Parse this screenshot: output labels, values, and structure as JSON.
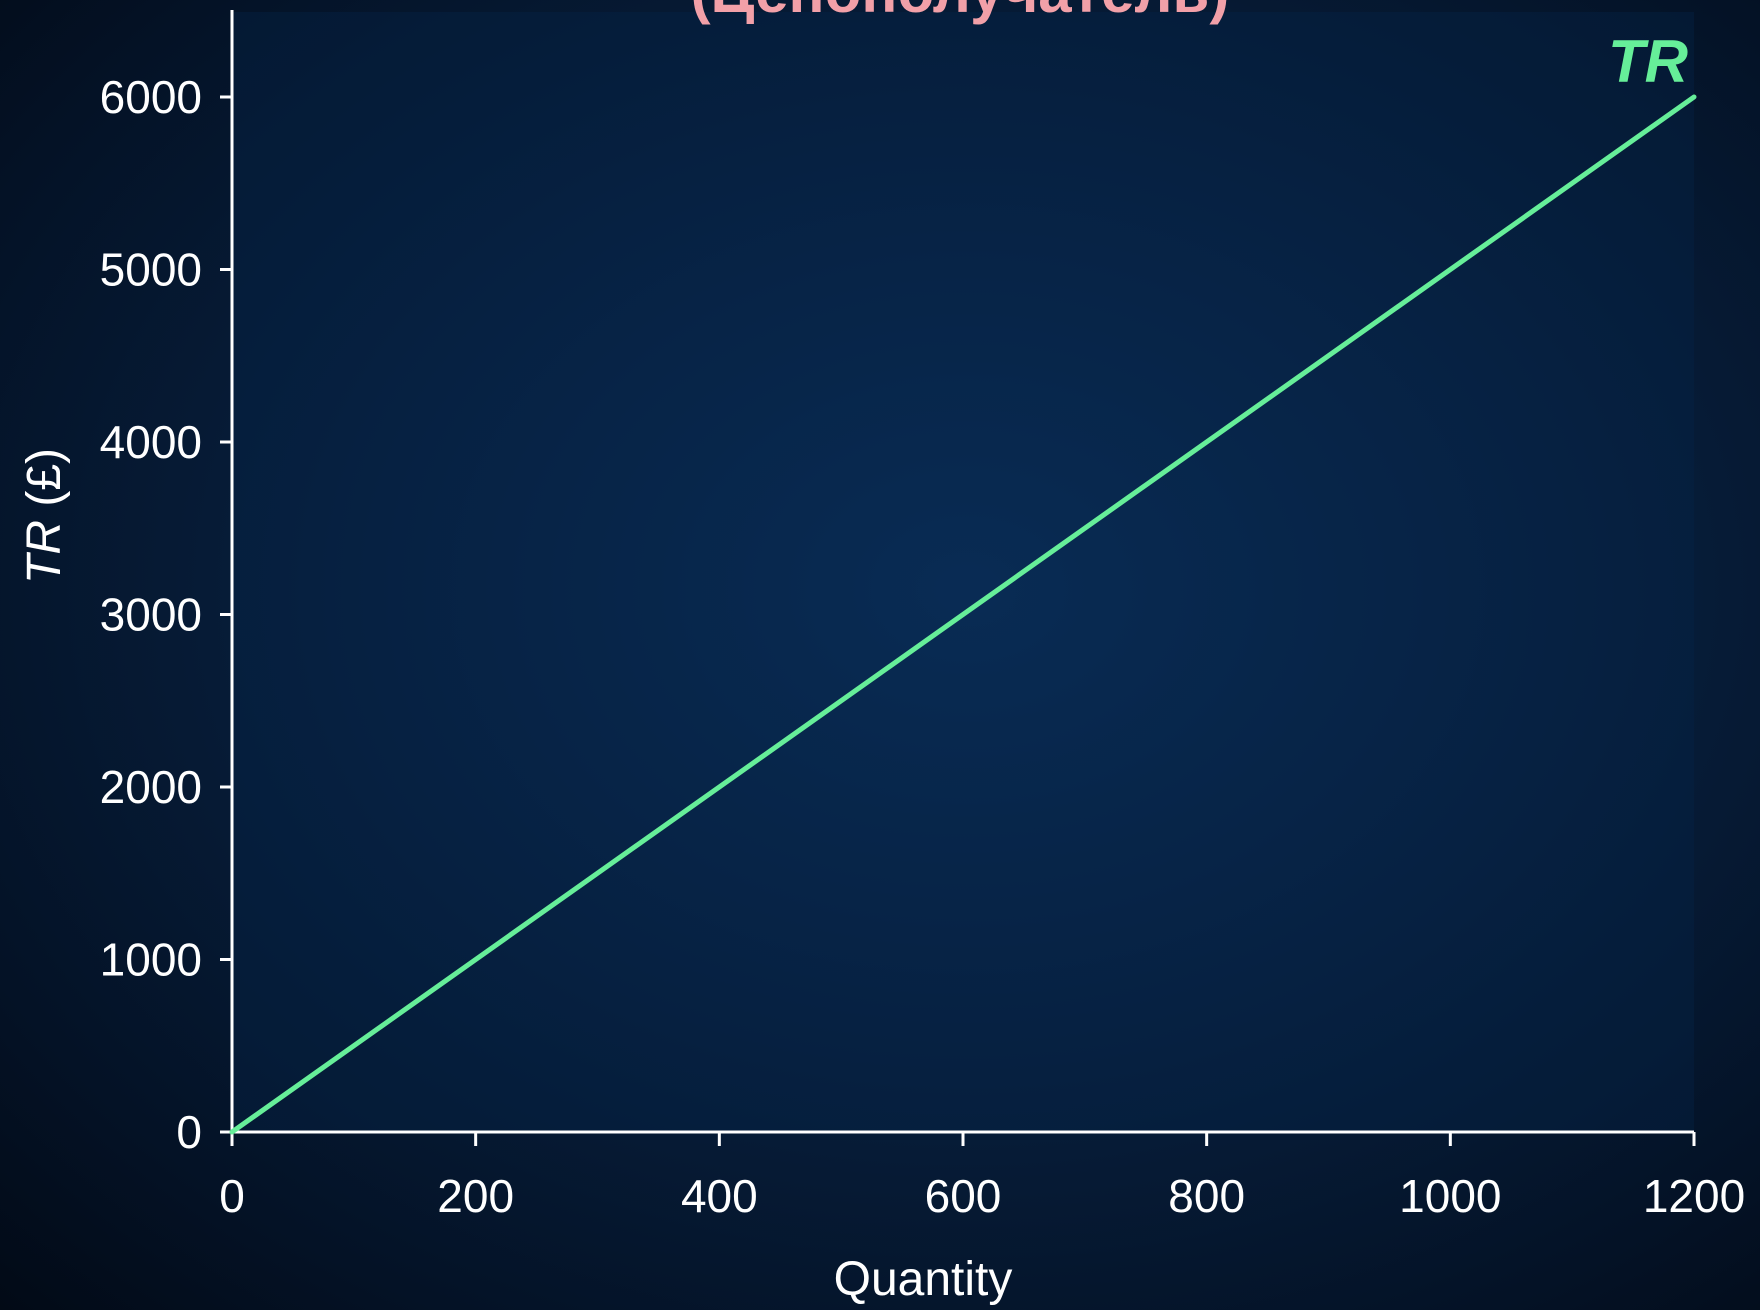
{
  "chart_data": {
    "type": "line",
    "title": "(Ценополучатель)",
    "xlabel": "Quantity",
    "ylabel_italic": "TR",
    "ylabel_rest": " (£)",
    "xlim": [
      0,
      1200
    ],
    "ylim": [
      0,
      6000
    ],
    "x_ticks": [
      0,
      200,
      400,
      600,
      800,
      1000,
      1200
    ],
    "y_ticks": [
      0,
      1000,
      2000,
      3000,
      4000,
      5000,
      6000
    ],
    "grid": false,
    "series": [
      {
        "name": "TR",
        "color": "#66ee99",
        "x": [
          0,
          1200
        ],
        "y": [
          0,
          6000
        ]
      }
    ]
  }
}
